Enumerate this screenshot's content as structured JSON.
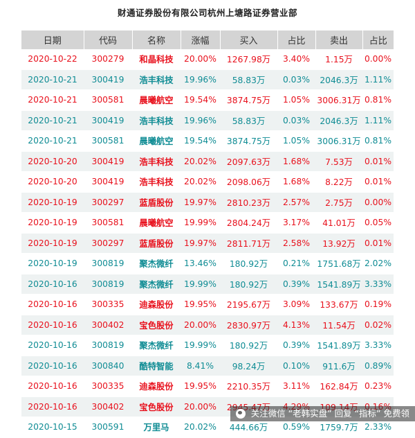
{
  "title": "财通证券股份有限公司杭州上塘路证券营业部",
  "headers": [
    "日期",
    "代码",
    "名称",
    "涨幅",
    "买入",
    "占比",
    "卖出",
    "占比"
  ],
  "colors": {
    "red": "#e8101c",
    "teal": "#0f8c94",
    "header_bg": "#d4d4d4",
    "stripe": "#eef2f2"
  },
  "rows": [
    {
      "date": "2020-10-22",
      "code": "300279",
      "name": "和晶科技",
      "change": "20.00%",
      "buy": "1267.98万",
      "buy_pct": "3.40%",
      "sell": "1.15万",
      "sell_pct": "0.00%",
      "color": "red"
    },
    {
      "date": "2020-10-21",
      "code": "300419",
      "name": "浩丰科技",
      "change": "19.96%",
      "buy": "58.83万",
      "buy_pct": "0.03%",
      "sell": "2046.3万",
      "sell_pct": "1.11%",
      "color": "teal"
    },
    {
      "date": "2020-10-21",
      "code": "300581",
      "name": "晨曦航空",
      "change": "19.54%",
      "buy": "3874.75万",
      "buy_pct": "1.05%",
      "sell": "3006.31万",
      "sell_pct": "0.81%",
      "color": "red"
    },
    {
      "date": "2020-10-21",
      "code": "300419",
      "name": "浩丰科技",
      "change": "19.96%",
      "buy": "58.83万",
      "buy_pct": "0.03%",
      "sell": "2046.3万",
      "sell_pct": "1.11%",
      "color": "teal"
    },
    {
      "date": "2020-10-21",
      "code": "300581",
      "name": "晨曦航空",
      "change": "19.54%",
      "buy": "3874.75万",
      "buy_pct": "1.05%",
      "sell": "3006.31万",
      "sell_pct": "0.81%",
      "color": "teal"
    },
    {
      "date": "2020-10-20",
      "code": "300419",
      "name": "浩丰科技",
      "change": "20.02%",
      "buy": "2097.63万",
      "buy_pct": "1.68%",
      "sell": "7.53万",
      "sell_pct": "0.01%",
      "color": "red"
    },
    {
      "date": "2020-10-20",
      "code": "300419",
      "name": "浩丰科技",
      "change": "20.02%",
      "buy": "2098.06万",
      "buy_pct": "1.68%",
      "sell": "8.22万",
      "sell_pct": "0.01%",
      "color": "red"
    },
    {
      "date": "2020-10-19",
      "code": "300297",
      "name": "蓝盾股份",
      "change": "19.97%",
      "buy": "2810.23万",
      "buy_pct": "2.57%",
      "sell": "2.75万",
      "sell_pct": "0.00%",
      "color": "red"
    },
    {
      "date": "2020-10-19",
      "code": "300581",
      "name": "晨曦航空",
      "change": "19.99%",
      "buy": "2804.24万",
      "buy_pct": "3.17%",
      "sell": "41.01万",
      "sell_pct": "0.05%",
      "color": "red"
    },
    {
      "date": "2020-10-19",
      "code": "300297",
      "name": "蓝盾股份",
      "change": "19.97%",
      "buy": "2811.71万",
      "buy_pct": "2.58%",
      "sell": "13.92万",
      "sell_pct": "0.01%",
      "color": "red"
    },
    {
      "date": "2020-10-19",
      "code": "300819",
      "name": "聚杰微纤",
      "change": "13.46%",
      "buy": "180.92万",
      "buy_pct": "0.21%",
      "sell": "1751.68万",
      "sell_pct": "2.02%",
      "color": "teal"
    },
    {
      "date": "2020-10-16",
      "code": "300819",
      "name": "聚杰微纤",
      "change": "19.99%",
      "buy": "180.92万",
      "buy_pct": "0.39%",
      "sell": "1541.89万",
      "sell_pct": "3.33%",
      "color": "teal"
    },
    {
      "date": "2020-10-16",
      "code": "300335",
      "name": "迪森股份",
      "change": "19.95%",
      "buy": "2195.67万",
      "buy_pct": "3.09%",
      "sell": "133.67万",
      "sell_pct": "0.19%",
      "color": "red"
    },
    {
      "date": "2020-10-16",
      "code": "300402",
      "name": "宝色股份",
      "change": "20.00%",
      "buy": "2830.97万",
      "buy_pct": "4.13%",
      "sell": "11.54万",
      "sell_pct": "0.02%",
      "color": "red"
    },
    {
      "date": "2020-10-16",
      "code": "300819",
      "name": "聚杰微纤",
      "change": "19.99%",
      "buy": "180.92万",
      "buy_pct": "0.39%",
      "sell": "1541.89万",
      "sell_pct": "3.33%",
      "color": "teal"
    },
    {
      "date": "2020-10-16",
      "code": "300840",
      "name": "酷特智能",
      "change": "8.41%",
      "buy": "98.24万",
      "buy_pct": "0.10%",
      "sell": "911.6万",
      "sell_pct": "0.89%",
      "color": "teal"
    },
    {
      "date": "2020-10-16",
      "code": "300335",
      "name": "迪森股份",
      "change": "19.95%",
      "buy": "2210.35万",
      "buy_pct": "3.11%",
      "sell": "162.84万",
      "sell_pct": "0.23%",
      "color": "red"
    },
    {
      "date": "2020-10-16",
      "code": "300402",
      "name": "宝色股份",
      "change": "20.00%",
      "buy": "2945.47万",
      "buy_pct": "4.29%",
      "sell": "109.14万",
      "sell_pct": "0.16%",
      "color": "red"
    },
    {
      "date": "2020-10-15",
      "code": "300591",
      "name": "万里马",
      "change": "20.02%",
      "buy": "444.66万",
      "buy_pct": "0.59%",
      "sell": "1759.7万",
      "sell_pct": "2.33%",
      "color": "teal"
    }
  ],
  "watermark": "关注微信 “老韩实盘” 回复 “指标” 免费领"
}
